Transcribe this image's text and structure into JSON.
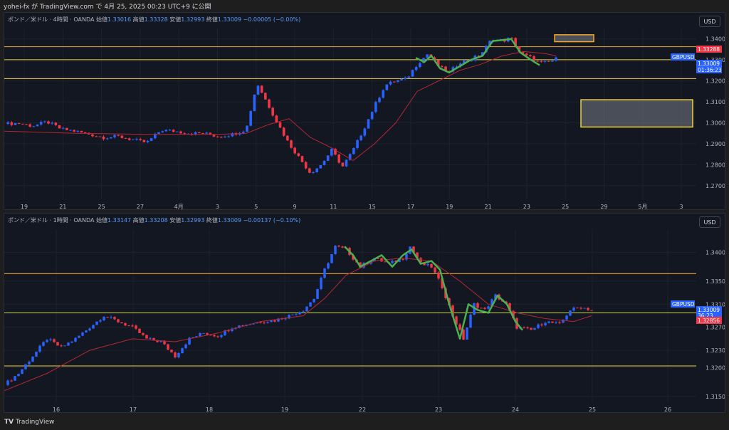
{
  "header": {
    "text": "yohei-fx が TradingView.com で 4月 25, 2025 00:23 UTC+9 に公開"
  },
  "footer": {
    "brand": "TradingView"
  },
  "colors": {
    "up": "#2962ff",
    "down": "#f23645",
    "ma": "#b22833",
    "wave": "#4caf50",
    "level_orange": "#f5a623",
    "level_yellow": "#f0d43a",
    "grid": "#1e222d",
    "bg": "#131722"
  },
  "chart_data": [
    {
      "type": "candlestick",
      "title": "ポンド／米ドル · 4時間 · OANDA",
      "ohlc": {
        "o_label": "始値",
        "o": "1.33016",
        "h_label": "高値",
        "h": "1.33328",
        "l_label": "安値",
        "l": "1.32993",
        "c_label": "終値",
        "c": "1.33009",
        "change": "−0.00005 (−0.00%)"
      },
      "unit_label": "USD",
      "ylim": [
        1.2635,
        1.345
      ],
      "y_ticks": [
        "1.34000",
        "1.33000",
        "1.32000",
        "1.31000",
        "1.30000",
        "1.29000",
        "1.28000",
        "1.27000"
      ],
      "x_ticks": [
        "19",
        "21",
        "25",
        "27",
        "4月",
        "3",
        "5",
        "9",
        "11",
        "15",
        "17",
        "19",
        "21",
        "23",
        "25",
        "29",
        "5月",
        "3"
      ],
      "levels": [
        1.3363,
        1.3301,
        1.3211
      ],
      "price_tags": [
        {
          "label": "1.33288",
          "color": "#f23645"
        },
        {
          "label": "GBPUSD",
          "color": "#2962ff"
        },
        {
          "label": "1.33009",
          "color": "#2962ff"
        },
        {
          "label": "01:36:23",
          "color": "#2962ff"
        }
      ],
      "zones": [
        {
          "top": 1.342,
          "bottom": 1.3387
        },
        {
          "top": 1.311,
          "bottom": 1.298
        }
      ],
      "series": [
        {
          "path": [
            [
              0,
              1.2995
            ],
            [
              20,
              1.2998
            ],
            [
              40,
              1.2985
            ],
            [
              60,
              1.3005
            ],
            [
              80,
              1.297
            ],
            [
              100,
              1.296
            ],
            [
              120,
              1.2945
            ],
            [
              140,
              1.293
            ],
            [
              160,
              1.2935
            ],
            [
              180,
              1.292
            ],
            [
              200,
              1.2905
            ],
            [
              220,
              1.2965
            ],
            [
              240,
              1.296
            ],
            [
              260,
              1.295
            ],
            [
              280,
              1.295
            ],
            [
              300,
              1.2935
            ],
            [
              320,
              1.2945
            ],
            [
              340,
              1.297
            ],
            [
              355,
              1.319
            ],
            [
              370,
              1.309
            ],
            [
              385,
              1.299
            ],
            [
              400,
              1.29
            ],
            [
              415,
              1.283
            ],
            [
              430,
              1.276
            ],
            [
              445,
              1.28
            ],
            [
              460,
              1.287
            ],
            [
              475,
              1.279
            ],
            [
              490,
              1.287
            ],
            [
              505,
              1.297
            ],
            [
              520,
              1.308
            ],
            [
              535,
              1.318
            ],
            [
              550,
              1.32
            ],
            [
              565,
              1.321
            ],
            [
              580,
              1.328
            ],
            [
              595,
              1.333
            ],
            [
              610,
              1.327
            ],
            [
              625,
              1.324
            ],
            [
              640,
              1.329
            ],
            [
              655,
              1.33
            ],
            [
              670,
              1.333
            ],
            [
              685,
              1.34
            ],
            [
              700,
              1.339
            ],
            [
              712,
              1.3405
            ],
            [
              725,
              1.333
            ],
            [
              740,
              1.331
            ],
            [
              752,
              1.3285
            ],
            [
              765,
              1.329
            ],
            [
              775,
              1.3305
            ]
          ]
        }
      ],
      "ma_path": [
        [
          0,
          1.296
        ],
        [
          100,
          1.295
        ],
        [
          200,
          1.2945
        ],
        [
          300,
          1.2945
        ],
        [
          340,
          1.295
        ],
        [
          370,
          1.299
        ],
        [
          400,
          1.302
        ],
        [
          430,
          1.293
        ],
        [
          460,
          1.288
        ],
        [
          490,
          1.282
        ],
        [
          520,
          1.29
        ],
        [
          550,
          1.3
        ],
        [
          580,
          1.315
        ],
        [
          610,
          1.32
        ],
        [
          640,
          1.325
        ],
        [
          670,
          1.328
        ],
        [
          700,
          1.332
        ],
        [
          730,
          1.334
        ],
        [
          760,
          1.333
        ],
        [
          775,
          1.332
        ]
      ],
      "wave_path": [
        [
          578,
          1.331
        ],
        [
          590,
          1.329
        ],
        [
          600,
          1.332
        ],
        [
          612,
          1.326
        ],
        [
          625,
          1.324
        ],
        [
          640,
          1.327
        ],
        [
          655,
          1.33
        ],
        [
          672,
          1.332
        ],
        [
          686,
          1.339
        ],
        [
          700,
          1.3395
        ],
        [
          712,
          1.34
        ],
        [
          725,
          1.3335
        ],
        [
          740,
          1.33
        ],
        [
          752,
          1.3275
        ]
      ]
    },
    {
      "type": "candlestick",
      "title": "ポンド／米ドル · 1時間 · OANDA",
      "ohlc": {
        "o_label": "始値",
        "o": "1.33147",
        "h_label": "高値",
        "h": "1.33208",
        "l_label": "安値",
        "l": "1.32993",
        "c_label": "終値",
        "c": "1.33009",
        "change": "−0.00137 (−0.10%)"
      },
      "unit_label": "USD",
      "ylim": [
        1.314,
        1.344
      ],
      "y_ticks": [
        "1.34000",
        "1.33500",
        "1.33100",
        "1.32700",
        "1.32300",
        "1.32000",
        "1.31500"
      ],
      "x_ticks": [
        "16",
        "17",
        "18",
        "19",
        "22",
        "23",
        "24",
        "25",
        "26"
      ],
      "levels": [
        1.3363,
        1.3295,
        1.3203
      ],
      "price_tags": [
        {
          "label": "GBPUSD",
          "color": "#2962ff"
        },
        {
          "label": "1.33009",
          "color": "#2962ff"
        },
        {
          "label": "36:23",
          "color": "#2962ff"
        },
        {
          "label": "1.32856",
          "color": "#f23645"
        }
      ],
      "series": [
        {
          "path": [
            [
              0,
              1.317
            ],
            [
              20,
              1.319
            ],
            [
              40,
              1.322
            ],
            [
              60,
              1.325
            ],
            [
              80,
              1.3235
            ],
            [
              100,
              1.325
            ],
            [
              120,
              1.327
            ],
            [
              140,
              1.329
            ],
            [
              160,
              1.328
            ],
            [
              180,
              1.327
            ],
            [
              200,
              1.325
            ],
            [
              220,
              1.3245
            ],
            [
              240,
              1.322
            ],
            [
              260,
              1.325
            ],
            [
              280,
              1.326
            ],
            [
              300,
              1.3255
            ],
            [
              320,
              1.327
            ],
            [
              340,
              1.3275
            ],
            [
              360,
              1.328
            ],
            [
              380,
              1.3282
            ],
            [
              400,
              1.329
            ],
            [
              420,
              1.33
            ],
            [
              435,
              1.332
            ],
            [
              450,
              1.337
            ],
            [
              465,
              1.341
            ],
            [
              480,
              1.3405
            ],
            [
              500,
              1.3375
            ],
            [
              520,
              1.339
            ],
            [
              540,
              1.338
            ],
            [
              560,
              1.339
            ],
            [
              570,
              1.341
            ],
            [
              585,
              1.338
            ],
            [
              600,
              1.3375
            ],
            [
              615,
              1.334
            ],
            [
              630,
              1.329
            ],
            [
              645,
              1.325
            ],
            [
              660,
              1.331
            ],
            [
              675,
              1.33
            ],
            [
              690,
              1.3325
            ],
            [
              705,
              1.331
            ],
            [
              720,
              1.327
            ],
            [
              740,
              1.3265
            ],
            [
              760,
              1.328
            ],
            [
              780,
              1.3275
            ],
            [
              795,
              1.33
            ],
            [
              810,
              1.3305
            ],
            [
              825,
              1.33
            ]
          ]
        }
      ],
      "ma_path": [
        [
          0,
          1.316
        ],
        [
          60,
          1.319
        ],
        [
          120,
          1.323
        ],
        [
          180,
          1.325
        ],
        [
          240,
          1.3245
        ],
        [
          300,
          1.326
        ],
        [
          360,
          1.328
        ],
        [
          420,
          1.329
        ],
        [
          450,
          1.332
        ],
        [
          480,
          1.336
        ],
        [
          520,
          1.3385
        ],
        [
          560,
          1.339
        ],
        [
          600,
          1.3385
        ],
        [
          640,
          1.335
        ],
        [
          680,
          1.331
        ],
        [
          720,
          1.3295
        ],
        [
          760,
          1.3285
        ],
        [
          800,
          1.328
        ],
        [
          825,
          1.329
        ]
      ],
      "wave_path": [
        [
          478,
          1.341
        ],
        [
          490,
          1.3395
        ],
        [
          500,
          1.3375
        ],
        [
          515,
          1.3385
        ],
        [
          530,
          1.3395
        ],
        [
          545,
          1.3375
        ],
        [
          560,
          1.3395
        ],
        [
          572,
          1.3405
        ],
        [
          585,
          1.338
        ],
        [
          600,
          1.3385
        ],
        [
          612,
          1.337
        ],
        [
          625,
          1.331
        ],
        [
          640,
          1.325
        ],
        [
          652,
          1.331
        ],
        [
          665,
          1.33
        ],
        [
          680,
          1.3295
        ],
        [
          693,
          1.3325
        ],
        [
          706,
          1.331
        ],
        [
          718,
          1.328
        ],
        [
          728,
          1.3265
        ]
      ]
    }
  ]
}
